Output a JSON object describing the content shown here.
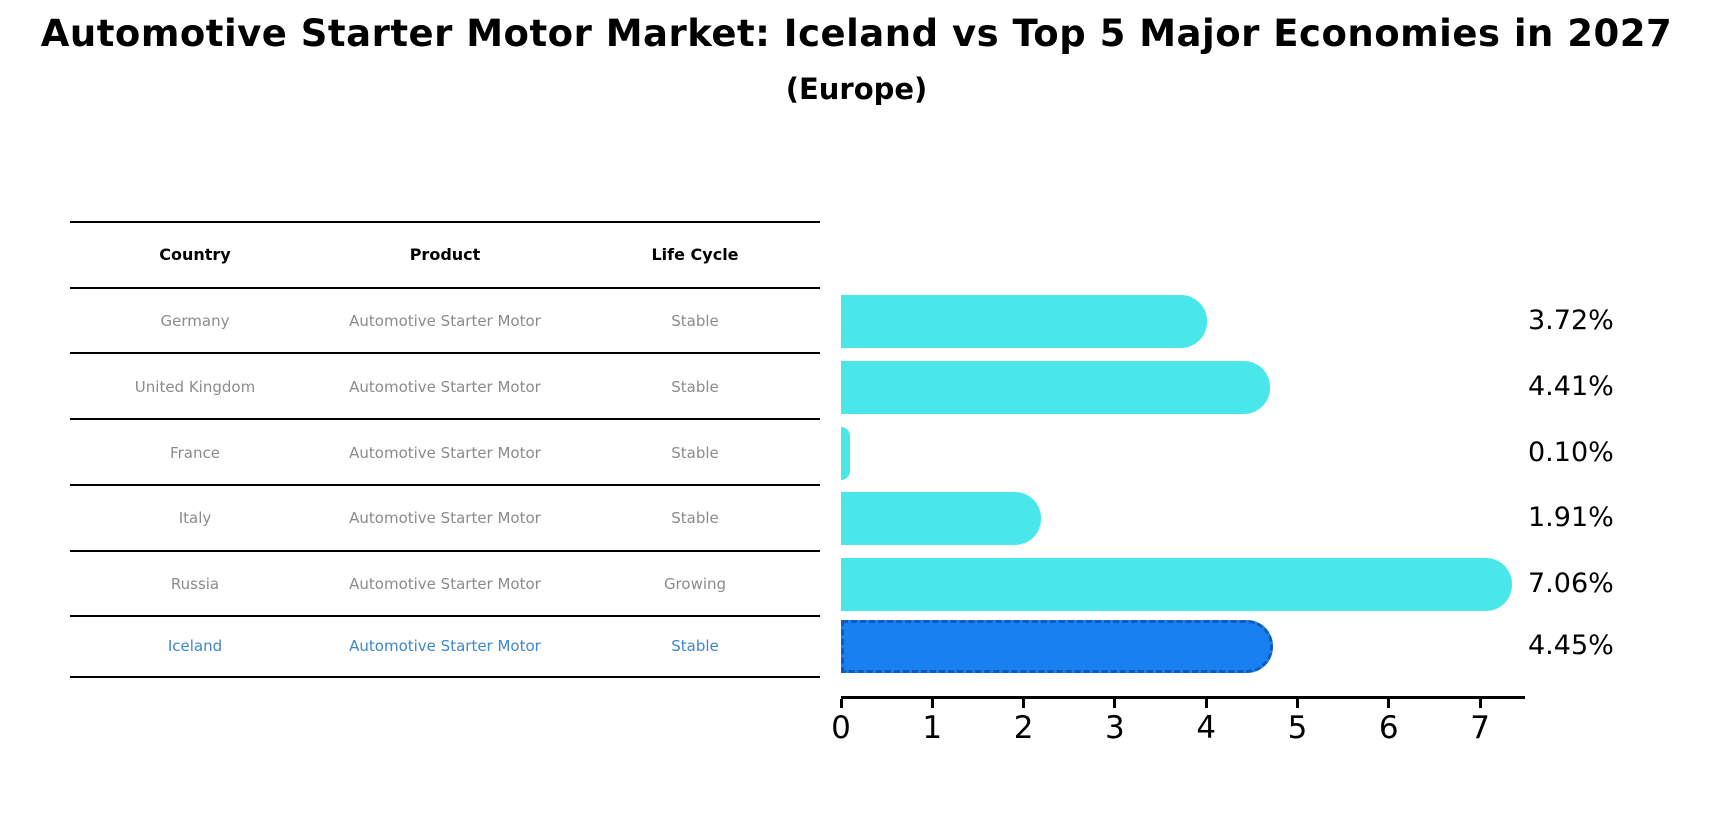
{
  "title": "Automotive Starter Motor Market: Iceland vs Top 5 Major Economies in 2027",
  "subtitle": "(Europe)",
  "table": {
    "headers": [
      "Country",
      "Product",
      "Life Cycle"
    ],
    "rows": [
      {
        "country": "Germany",
        "product": "Automotive Starter Motor",
        "life_cycle": "Stable"
      },
      {
        "country": "United Kingdom",
        "product": "Automotive Starter Motor",
        "life_cycle": "Stable"
      },
      {
        "country": "France",
        "product": "Automotive Starter Motor",
        "life_cycle": "Stable"
      },
      {
        "country": "Italy",
        "product": "Automotive Starter Motor",
        "life_cycle": "Stable"
      },
      {
        "country": "Russia",
        "product": "Automotive Starter Motor",
        "life_cycle": "Growing"
      },
      {
        "country": "Iceland",
        "product": "Automotive Starter Motor",
        "life_cycle": "Stable"
      }
    ]
  },
  "chart_data": {
    "type": "bar",
    "orientation": "horizontal",
    "title": "Automotive Starter Motor Market: Iceland vs Top 5 Major Economies in 2027",
    "subtitle": "(Europe)",
    "categories": [
      "Germany",
      "United Kingdom",
      "France",
      "Italy",
      "Russia",
      "Iceland"
    ],
    "values": [
      3.72,
      4.41,
      0.1,
      1.91,
      7.06,
      4.45
    ],
    "value_labels": [
      "3.72%",
      "4.41%",
      "0.10%",
      "1.91%",
      "7.06%",
      "4.45%"
    ],
    "life_cycles": [
      "Stable",
      "Stable",
      "Stable",
      "Stable",
      "Growing",
      "Stable"
    ],
    "x_ticks": [
      0,
      1,
      2,
      3,
      4,
      5,
      6,
      7
    ],
    "xlim": [
      0,
      7.5
    ],
    "xlabel": "",
    "ylabel": "",
    "grid": false,
    "legend": false,
    "highlight_index": 5,
    "highlight_category": "Iceland"
  },
  "colors": {
    "bar": "#4AE7EA",
    "highlight": "#1980F0",
    "highlight-border": "#0D5BBD",
    "muted-text": "#8B8B8B",
    "highlight-text": "#3D87CC",
    "axis": "#000000"
  }
}
